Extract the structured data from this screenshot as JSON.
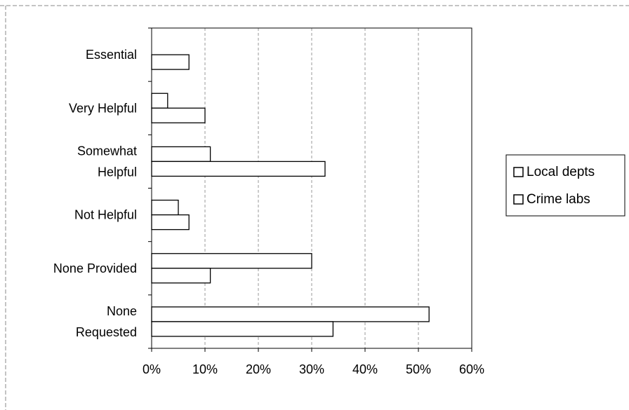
{
  "chart_data": {
    "type": "bar",
    "orientation": "horizontal",
    "title": "",
    "xlabel": "",
    "ylabel": "",
    "xlim": [
      0,
      60
    ],
    "x_ticks": [
      0,
      10,
      20,
      30,
      40,
      50,
      60
    ],
    "x_tick_format": "percent",
    "grid": "vertical",
    "legend_position": "right",
    "categories": [
      [
        "Essential"
      ],
      [
        "Very Helpful"
      ],
      [
        "Somewhat",
        "Helpful"
      ],
      [
        "Not Helpful"
      ],
      [
        "None Provided"
      ],
      [
        "None",
        "Requested"
      ]
    ],
    "series": [
      {
        "name": "Local depts",
        "values": [
          0,
          3,
          11,
          5,
          30,
          52
        ]
      },
      {
        "name": "Crime labs",
        "values": [
          7,
          10,
          32.5,
          7,
          11,
          34
        ]
      }
    ],
    "colors": {
      "bar_fill": "#ffffff",
      "bar_stroke": "#000000",
      "grid": "#999999"
    }
  }
}
